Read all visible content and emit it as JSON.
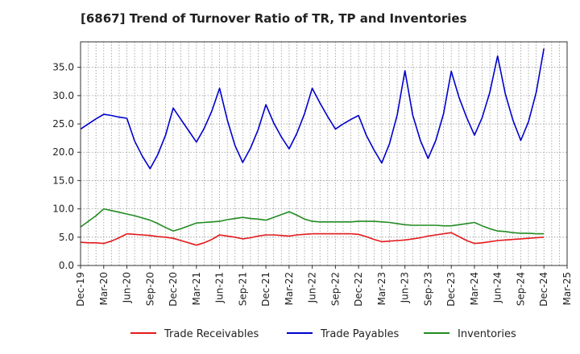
{
  "chart_data": {
    "type": "line",
    "title": "[6867]  Trend of Turnover Ratio of TR, TP and Inventories",
    "xlabel": "",
    "ylabel": "",
    "ylim": [
      0,
      39.5
    ],
    "yticks": [
      "0.0",
      "5.0",
      "10.0",
      "15.0",
      "20.0",
      "25.0",
      "30.0",
      "35.0"
    ],
    "xticks": [
      "Dec-19",
      "Mar-20",
      "Jun-20",
      "Sep-20",
      "Dec-20",
      "Mar-21",
      "Jun-21",
      "Sep-21",
      "Dec-21",
      "Mar-22",
      "Jun-22",
      "Sep-22",
      "Dec-22",
      "Mar-23",
      "Jun-23",
      "Sep-23",
      "Dec-23",
      "Mar-24",
      "Jun-24",
      "Sep-24",
      "Dec-24",
      "Mar-25"
    ],
    "x": [
      "Dec-19",
      "Jan-20",
      "Feb-20",
      "Mar-20",
      "Apr-20",
      "May-20",
      "Jun-20",
      "Jul-20",
      "Aug-20",
      "Sep-20",
      "Oct-20",
      "Nov-20",
      "Dec-20",
      "Jan-21",
      "Feb-21",
      "Mar-21",
      "Apr-21",
      "May-21",
      "Jun-21",
      "Jul-21",
      "Aug-21",
      "Sep-21",
      "Oct-21",
      "Nov-21",
      "Dec-21",
      "Jan-22",
      "Feb-22",
      "Mar-22",
      "Apr-22",
      "May-22",
      "Jun-22",
      "Jul-22",
      "Aug-22",
      "Sep-22",
      "Oct-22",
      "Nov-22",
      "Dec-22",
      "Jan-23",
      "Feb-23",
      "Mar-23",
      "Apr-23",
      "May-23",
      "Jun-23",
      "Jul-23",
      "Aug-23",
      "Sep-23",
      "Oct-23",
      "Nov-23",
      "Dec-23",
      "Jan-24",
      "Feb-24",
      "Mar-24",
      "Apr-24",
      "May-24",
      "Jun-24",
      "Jul-24",
      "Aug-24",
      "Sep-24",
      "Oct-24",
      "Nov-24",
      "Dec-24"
    ],
    "series": [
      {
        "name": "Trade Receivables",
        "color": "#e31a1c",
        "values": [
          4.1,
          4.0,
          4.0,
          3.9,
          4.3,
          4.9,
          5.6,
          5.5,
          5.4,
          5.3,
          5.1,
          5.0,
          4.8,
          4.4,
          4.0,
          3.6,
          4.0,
          4.6,
          5.4,
          5.2,
          5.0,
          4.7,
          4.9,
          5.2,
          5.4,
          5.4,
          5.3,
          5.2,
          5.4,
          5.5,
          5.6,
          5.6,
          5.6,
          5.6,
          5.6,
          5.6,
          5.5,
          5.1,
          4.6,
          4.2,
          4.3,
          4.4,
          4.5,
          4.7,
          4.9,
          5.2,
          5.4,
          5.6,
          5.8,
          5.1,
          4.4,
          3.9,
          4.0,
          4.2,
          4.4,
          4.5,
          4.6,
          4.7,
          4.8,
          4.9,
          5.0
        ]
      },
      {
        "name": "Trade Payables",
        "color": "#0000cc",
        "values": [
          24.1,
          25.0,
          25.9,
          26.7,
          26.5,
          26.2,
          26.0,
          22.0,
          19.3,
          17.1,
          19.6,
          23.0,
          27.8,
          25.8,
          23.8,
          21.8,
          24.2,
          27.3,
          31.3,
          25.7,
          21.2,
          18.2,
          20.7,
          24.0,
          28.4,
          25.2,
          22.7,
          20.6,
          23.3,
          26.8,
          31.3,
          28.7,
          26.3,
          24.1,
          25.0,
          25.8,
          26.5,
          23.0,
          20.4,
          18.1,
          21.5,
          26.6,
          34.4,
          26.6,
          22.1,
          18.9,
          22.1,
          26.8,
          34.3,
          29.7,
          26.1,
          23.0,
          26.1,
          30.6,
          37.0,
          30.3,
          25.6,
          22.1,
          25.4,
          30.6,
          38.3
        ]
      },
      {
        "name": "Inventories",
        "color": "#228b22",
        "values": [
          6.8,
          7.8,
          8.8,
          10.0,
          9.7,
          9.4,
          9.1,
          8.8,
          8.4,
          8.0,
          7.4,
          6.7,
          6.1,
          6.5,
          7.0,
          7.5,
          7.6,
          7.7,
          7.8,
          8.1,
          8.3,
          8.5,
          8.3,
          8.2,
          8.0,
          8.5,
          9.0,
          9.5,
          8.9,
          8.2,
          7.8,
          7.7,
          7.7,
          7.7,
          7.7,
          7.7,
          7.8,
          7.8,
          7.8,
          7.7,
          7.6,
          7.4,
          7.2,
          7.1,
          7.1,
          7.1,
          7.1,
          7.0,
          7.0,
          7.2,
          7.4,
          7.6,
          7.0,
          6.5,
          6.1,
          6.0,
          5.8,
          5.7,
          5.7,
          5.6,
          5.6
        ]
      }
    ],
    "legend": {
      "placement": "bottom",
      "items": [
        "Trade Receivables",
        "Trade Payables",
        "Inventories"
      ]
    },
    "grid": true,
    "grid_style": "dotted"
  }
}
